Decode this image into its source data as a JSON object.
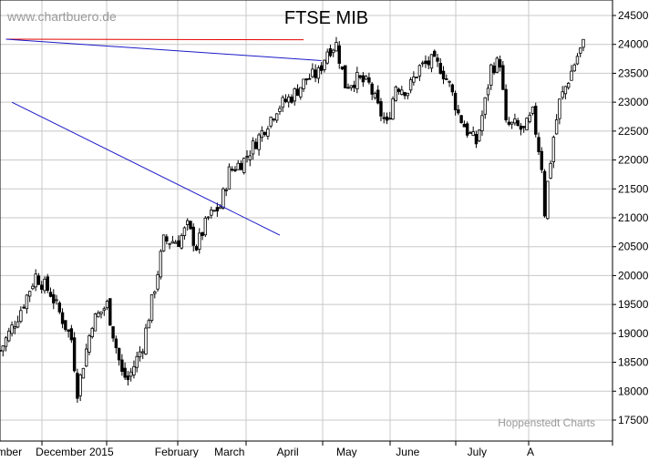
{
  "chart_data": {
    "type": "candlestick",
    "title": "FTSE MIB",
    "watermark": "www.chartbuero.de",
    "credit": "Hoppenstedt Charts",
    "y_axis": {
      "position": "right",
      "ylim": [
        17200,
        24700
      ],
      "ticks": [
        17500,
        18000,
        18500,
        19000,
        19500,
        20000,
        20500,
        21000,
        21500,
        22000,
        22500,
        23000,
        23500,
        24000,
        24500
      ]
    },
    "x_axis": {
      "labels": [
        "mber",
        "December",
        "2015",
        "February",
        "March",
        "April",
        "May",
        "June",
        "July",
        "A"
      ]
    },
    "grid": true,
    "colors": {
      "up": "#ffffff",
      "down": "#000000",
      "outline": "#000000",
      "grid": "#c8c8c8",
      "resistance_line": "#e60000",
      "trend_lines": "#1a1ac8"
    },
    "trend_lines": [
      {
        "from": {
          "session": 2,
          "value": 24090
        },
        "to": {
          "session": 102,
          "value": 24080
        },
        "color": "red"
      },
      {
        "from": {
          "session": 2,
          "value": 24090
        },
        "to": {
          "session": 108,
          "value": 23720
        },
        "color": "blue"
      },
      {
        "from": {
          "session": 4,
          "value": 23000
        },
        "to": {
          "session": 94,
          "value": 20700
        },
        "color": "blue"
      }
    ],
    "anchor_closes": [
      {
        "session": 0,
        "value": 18700
      },
      {
        "session": 6,
        "value": 19300
      },
      {
        "session": 12,
        "value": 20000
      },
      {
        "session": 17,
        "value": 19700
      },
      {
        "session": 24,
        "value": 18900
      },
      {
        "session": 26,
        "value": 18000
      },
      {
        "session": 31,
        "value": 19200
      },
      {
        "session": 36,
        "value": 19500
      },
      {
        "session": 38,
        "value": 19000
      },
      {
        "session": 41,
        "value": 18300
      },
      {
        "session": 43,
        "value": 18200
      },
      {
        "session": 48,
        "value": 18800
      },
      {
        "session": 52,
        "value": 19800
      },
      {
        "session": 55,
        "value": 20600
      },
      {
        "session": 60,
        "value": 20600
      },
      {
        "session": 63,
        "value": 20850
      },
      {
        "session": 66,
        "value": 20500
      },
      {
        "session": 70,
        "value": 21000
      },
      {
        "session": 74,
        "value": 21200
      },
      {
        "session": 77,
        "value": 21800
      },
      {
        "session": 82,
        "value": 22000
      },
      {
        "session": 87,
        "value": 22400
      },
      {
        "session": 93,
        "value": 22900
      },
      {
        "session": 98,
        "value": 23100
      },
      {
        "session": 103,
        "value": 23400
      },
      {
        "session": 107,
        "value": 23500
      },
      {
        "session": 110,
        "value": 23900
      },
      {
        "session": 113,
        "value": 24000
      },
      {
        "session": 116,
        "value": 23300
      },
      {
        "session": 120,
        "value": 23400
      },
      {
        "session": 124,
        "value": 23300
      },
      {
        "session": 127,
        "value": 22900
      },
      {
        "session": 130,
        "value": 22600
      },
      {
        "session": 133,
        "value": 23300
      },
      {
        "session": 137,
        "value": 23200
      },
      {
        "session": 141,
        "value": 23600
      },
      {
        "session": 145,
        "value": 23700
      },
      {
        "session": 148,
        "value": 23600
      },
      {
        "session": 151,
        "value": 23300
      },
      {
        "session": 154,
        "value": 22800
      },
      {
        "session": 157,
        "value": 22500
      },
      {
        "session": 160,
        "value": 22300
      },
      {
        "session": 163,
        "value": 23000
      },
      {
        "session": 165,
        "value": 23600
      },
      {
        "session": 168,
        "value": 23700
      },
      {
        "session": 170,
        "value": 22600
      },
      {
        "session": 173,
        "value": 22600
      },
      {
        "session": 176,
        "value": 22500
      },
      {
        "session": 179,
        "value": 22800
      },
      {
        "session": 182,
        "value": 21900
      },
      {
        "session": 183,
        "value": 21100
      },
      {
        "session": 184,
        "value": 21600
      },
      {
        "session": 186,
        "value": 22400
      },
      {
        "session": 188,
        "value": 23000
      },
      {
        "session": 191,
        "value": 23400
      },
      {
        "session": 194,
        "value": 23800
      },
      {
        "session": 196,
        "value": 24000
      }
    ],
    "visible_sessions": 197
  }
}
